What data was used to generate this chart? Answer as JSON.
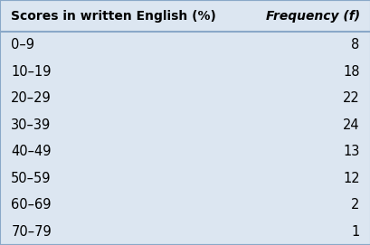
{
  "col1_header": "Scores in written English (%)",
  "col2_header": "Frequency (f)",
  "rows": [
    [
      "0–9",
      "8"
    ],
    [
      "10–19",
      "18"
    ],
    [
      "20–29",
      "22"
    ],
    [
      "30–39",
      "24"
    ],
    [
      "40–49",
      "13"
    ],
    [
      "50–59",
      "12"
    ],
    [
      "60–69",
      "2"
    ],
    [
      "70–79",
      "1"
    ]
  ],
  "background_color": "#dce6f1",
  "text_color": "#000000",
  "border_color": "#8aa8c8",
  "header_fontsize": 10.0,
  "row_fontsize": 10.5
}
